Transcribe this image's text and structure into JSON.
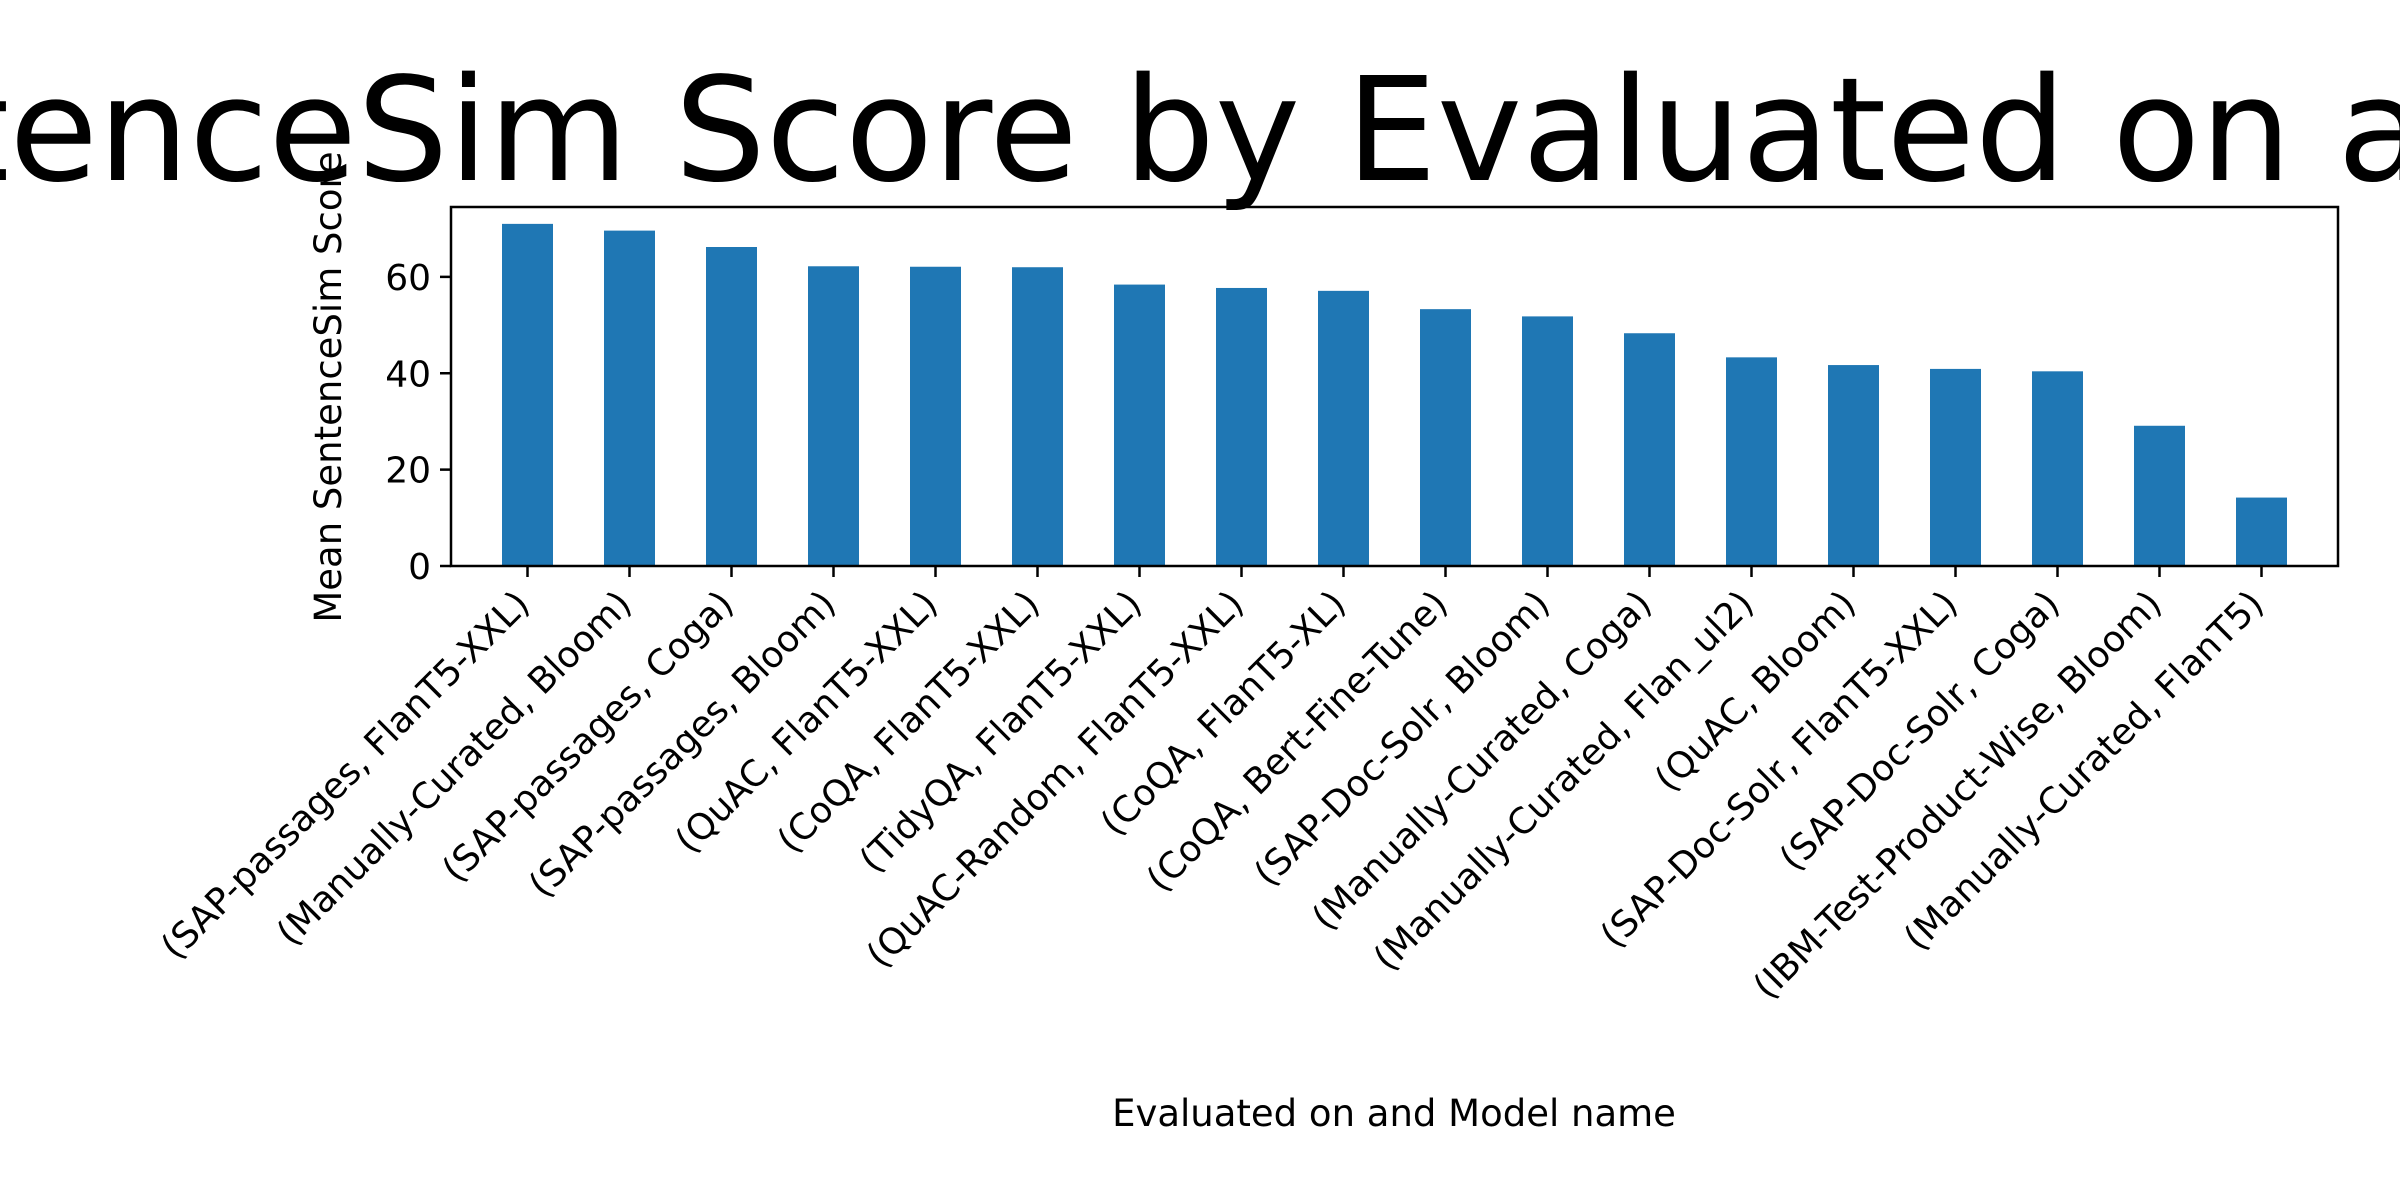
{
  "chart_data": {
    "type": "bar",
    "title": "Mean SentenceSim Score by Evaluated on and Model name",
    "xlabel": "Evaluated on and Model name",
    "ylabel": "Mean SentenceSim Score",
    "ylim": [
      0,
      74.5
    ],
    "yticks": [
      0,
      20,
      40,
      60
    ],
    "grid": false,
    "legend": "none",
    "bar_color": "#1f77b4",
    "categories": [
      "(SAP-passages, FlanT5-XXL)",
      "(Manually-Curated, Bloom)",
      "(SAP-passages, Coga)",
      "(SAP-passages, Bloom)",
      "(QuAC, FlanT5-XXL)",
      "(CoQA, FlanT5-XXL)",
      "(TidyQA, FlanT5-XXL)",
      "(QuAC-Random, FlanT5-XXL)",
      "(CoQA, FlanT5-XL)",
      "(CoQA, Bert-Fine-Tune)",
      "(SAP-Doc-Solr, Bloom)",
      "(Manually-Curated, Coga)",
      "(Manually-Curated, Flan_ul2)",
      "(QuAC, Bloom)",
      "(SAP-Doc-Solr, FlanT5-XXL)",
      "(SAP-Doc-Solr, Coga)",
      "(IBM-Test-Product-Wise, Bloom)",
      "(Manually-Curated, FlanT5)"
    ],
    "values": [
      71.0,
      69.6,
      66.2,
      62.2,
      62.1,
      62.0,
      58.4,
      57.7,
      57.1,
      53.3,
      51.8,
      48.3,
      43.3,
      41.7,
      40.9,
      40.4,
      29.1,
      14.2
    ]
  }
}
